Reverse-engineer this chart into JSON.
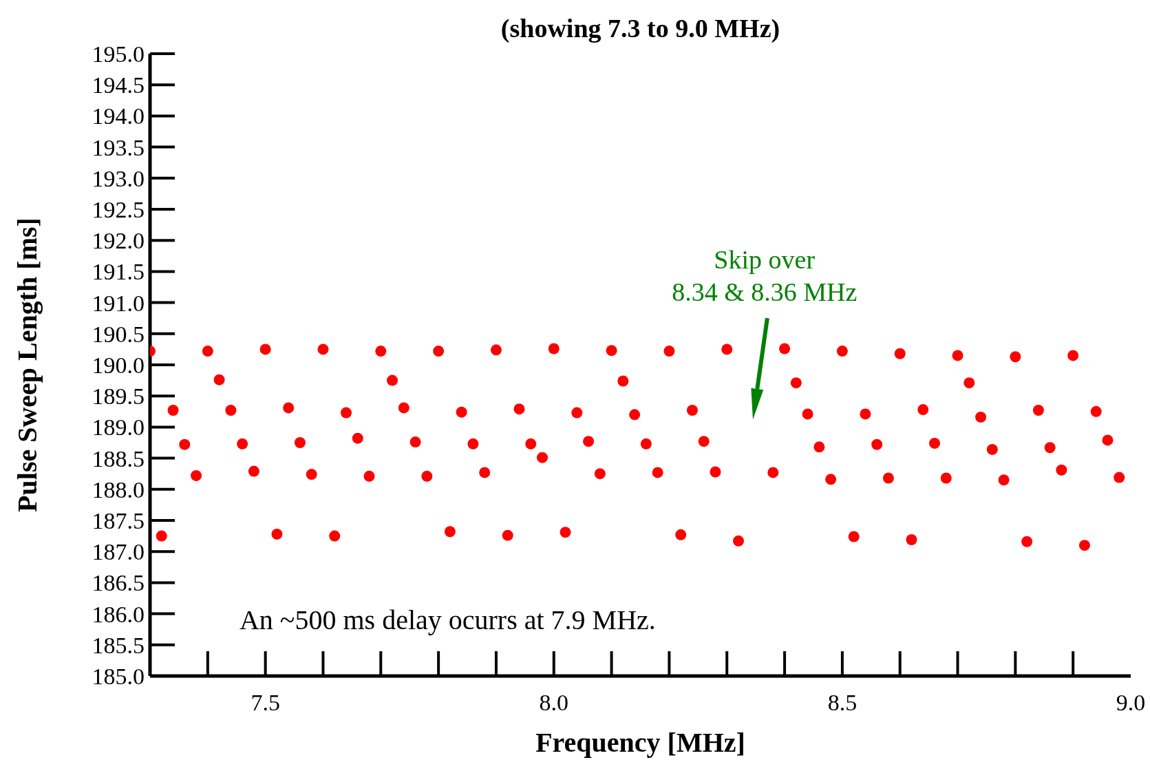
{
  "chart_data": {
    "type": "scatter",
    "title": "(showing 7.3 to 9.0 MHz)",
    "xlabel": "Frequency [MHz]",
    "ylabel": "Pulse Sweep Length [ms]",
    "x": [
      7.3,
      7.32,
      7.34,
      7.36,
      7.38,
      7.4,
      7.42,
      7.44,
      7.46,
      7.48,
      7.5,
      7.52,
      7.54,
      7.56,
      7.58,
      7.6,
      7.62,
      7.64,
      7.66,
      7.68,
      7.7,
      7.72,
      7.74,
      7.76,
      7.78,
      7.8,
      7.82,
      7.84,
      7.86,
      7.88,
      7.9,
      7.92,
      7.94,
      7.96,
      7.98,
      8.0,
      8.02,
      8.04,
      8.06,
      8.08,
      8.1,
      8.12,
      8.14,
      8.16,
      8.18,
      8.2,
      8.22,
      8.24,
      8.26,
      8.28,
      8.3,
      8.32,
      8.38,
      8.4,
      8.42,
      8.44,
      8.46,
      8.48,
      8.5,
      8.52,
      8.54,
      8.56,
      8.58,
      8.6,
      8.62,
      8.64,
      8.66,
      8.68,
      8.7,
      8.72,
      8.74,
      8.76,
      8.78,
      8.8,
      8.82,
      8.84,
      8.86,
      8.88,
      8.9,
      8.92,
      8.94,
      8.96,
      8.98
    ],
    "series": [
      {
        "color": "#ff0000",
        "values": [
          190.22,
          187.25,
          189.27,
          188.72,
          188.22,
          190.22,
          189.76,
          189.27,
          188.73,
          188.29,
          190.25,
          187.28,
          189.31,
          188.75,
          188.24,
          190.25,
          187.25,
          189.23,
          188.82,
          188.21,
          190.22,
          189.75,
          189.31,
          188.76,
          188.21,
          190.22,
          187.32,
          189.24,
          188.73,
          188.27,
          190.24,
          187.26,
          189.29,
          188.73,
          188.51,
          190.26,
          187.31,
          189.23,
          188.77,
          188.25,
          190.23,
          189.74,
          189.2,
          188.73,
          188.27,
          190.22,
          187.27,
          189.27,
          188.77,
          188.28,
          190.25,
          187.17,
          188.27,
          190.26,
          189.71,
          189.21,
          188.68,
          188.16,
          190.22,
          187.24,
          189.21,
          188.72,
          188.18,
          190.18,
          187.19,
          189.28,
          188.74,
          188.18,
          190.15,
          189.71,
          189.16,
          188.64,
          188.15,
          190.13,
          187.16,
          189.27,
          188.67,
          188.31,
          190.15,
          187.1,
          189.25,
          188.79,
          188.19
        ]
      }
    ],
    "xlim": [
      7.3,
      9.0
    ],
    "xticks": [
      7.5,
      {
        "value": 8.0,
        "label": "8.0"
      },
      8.5,
      {
        "value": 9.0,
        "label": "9.0"
      }
    ],
    "ylim": [
      185,
      195
    ],
    "yticks": [
      {
        "value": 185,
        "label": "185.0"
      },
      185.5,
      {
        "value": 186,
        "label": "186.0"
      },
      186.5,
      {
        "value": 187,
        "label": "187.0"
      },
      187.5,
      {
        "value": 188,
        "label": "188.0"
      },
      188.5,
      {
        "value": 189,
        "label": "189.0"
      },
      189.5,
      {
        "value": 190,
        "label": "190.0"
      },
      190.5,
      {
        "value": 191,
        "label": "191.0"
      },
      191.5,
      {
        "value": 192,
        "label": "192.0"
      },
      192.5,
      {
        "value": 193,
        "label": "193.0"
      },
      193.5,
      {
        "value": 194,
        "label": "194.0"
      },
      194.5,
      {
        "value": 195,
        "label": "195.0"
      }
    ],
    "marker": "circle",
    "grid": false,
    "legend": false,
    "annotations": [
      "Skip over\n8.34 & 8.36 MHz",
      "An ~500 ms delay ocurrs at 7.9 MHz."
    ]
  }
}
